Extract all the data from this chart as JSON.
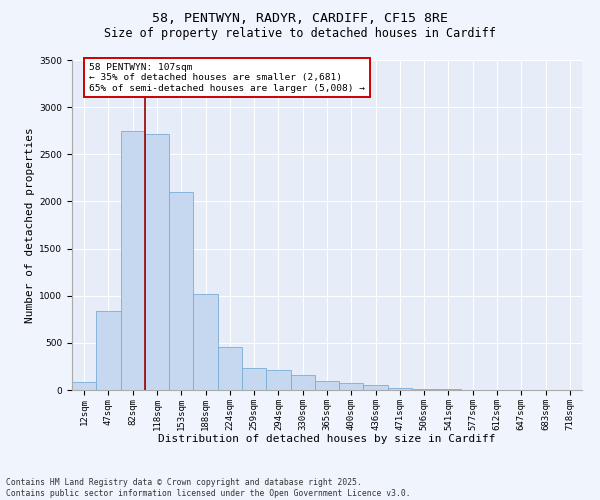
{
  "title_line1": "58, PENTWYN, RADYR, CARDIFF, CF15 8RE",
  "title_line2": "Size of property relative to detached houses in Cardiff",
  "xlabel": "Distribution of detached houses by size in Cardiff",
  "ylabel": "Number of detached properties",
  "categories": [
    "12sqm",
    "47sqm",
    "82sqm",
    "118sqm",
    "153sqm",
    "188sqm",
    "224sqm",
    "259sqm",
    "294sqm",
    "330sqm",
    "365sqm",
    "400sqm",
    "436sqm",
    "471sqm",
    "506sqm",
    "541sqm",
    "577sqm",
    "612sqm",
    "647sqm",
    "683sqm",
    "718sqm"
  ],
  "values": [
    80,
    840,
    2750,
    2720,
    2100,
    1020,
    460,
    230,
    210,
    155,
    100,
    75,
    50,
    25,
    10,
    7,
    4,
    2,
    1,
    1,
    1
  ],
  "bar_color": "#c5d8f0",
  "bar_edge_color": "#7aadd4",
  "vline_x": 2.5,
  "vline_color": "#990000",
  "annotation_text": "58 PENTWYN: 107sqm\n← 35% of detached houses are smaller (2,681)\n65% of semi-detached houses are larger (5,008) →",
  "annotation_box_color": "#ffffff",
  "annotation_box_edge": "#cc0000",
  "ylim": [
    0,
    3500
  ],
  "yticks": [
    0,
    500,
    1000,
    1500,
    2000,
    2500,
    3000,
    3500
  ],
  "background_color": "#f0f4fc",
  "plot_bg_color": "#e6ecf8",
  "footer_line1": "Contains HM Land Registry data © Crown copyright and database right 2025.",
  "footer_line2": "Contains public sector information licensed under the Open Government Licence v3.0.",
  "title_fontsize": 9.5,
  "subtitle_fontsize": 8.5,
  "tick_fontsize": 6.5,
  "label_fontsize": 8,
  "footer_fontsize": 5.8,
  "annot_fontsize": 6.8
}
